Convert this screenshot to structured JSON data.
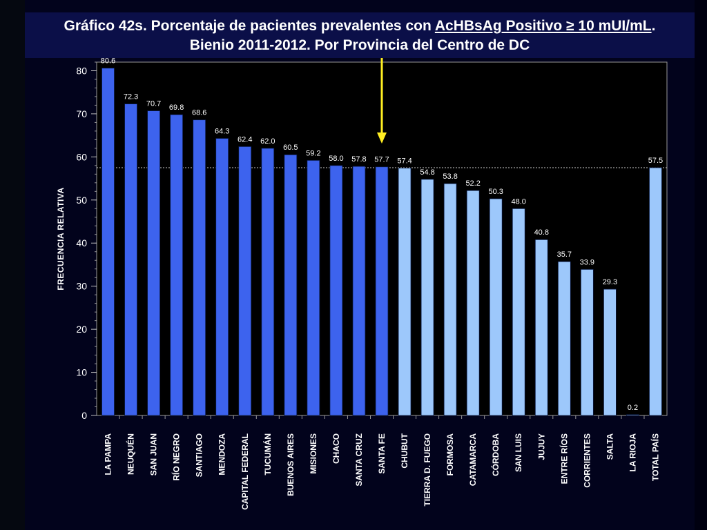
{
  "title": {
    "part1": "Gráfico 42s. Porcentaje de pacientes prevalentes  con ",
    "underlined": "AcHBsAg Positivo ≥ 10 mUI/mL",
    "part2": ".",
    "line2": "Bienio 2011-2012.  Por Provincia del Centro de DC"
  },
  "colors": {
    "highlight_bar": "#3d63ee",
    "normal_bar": "#9dc8fb",
    "arrow": "#ffee22",
    "reference_line": "#cccccc"
  },
  "chart_data": {
    "type": "bar",
    "ylabel": "FRECUENCIA RELATIVA",
    "ylim": [
      0,
      82
    ],
    "yticks": [
      0,
      10,
      20,
      30,
      40,
      50,
      60,
      70,
      80
    ],
    "reference_value": 57.5,
    "arrow_category": "SANTA FE",
    "grid": false,
    "categories": [
      "LA PAMPA",
      "NEUQUÉN",
      "SAN JUAN",
      "RÍO NEGRO",
      "SANTIAGO",
      "MENDOZA",
      "CAPITAL FEDERAL",
      "TUCUMÁN",
      "BUENOS AIRES",
      "MISIONES",
      "CHACO",
      "SANTA CRUZ",
      "SANTA FE",
      "CHUBUT",
      "TIERRA D. FUEGO",
      "FORMOSA",
      "CATAMARCA",
      "CÓRDOBA",
      "SAN LUIS",
      "JUJUY",
      "ENTRE RÍOS",
      "CORRIENTES",
      "SALTA",
      "LA RIOJA",
      "TOTAL PAÍS"
    ],
    "values": [
      80.6,
      72.3,
      70.7,
      69.8,
      68.6,
      64.3,
      62.4,
      62.0,
      60.5,
      59.2,
      58.0,
      57.8,
      57.7,
      57.4,
      54.8,
      53.8,
      52.2,
      50.3,
      48.0,
      40.8,
      35.7,
      33.9,
      29.3,
      0.2,
      57.5
    ],
    "value_labels": [
      "80.6",
      "72.3",
      "70.7",
      "69.8",
      "68.6",
      "64.3",
      "62.4",
      "62.0",
      "60.5",
      "59.2",
      "58.0",
      "57.8",
      "57.7",
      "57.4",
      "54.8",
      "53.8",
      "52.2",
      "50.3",
      "48.0",
      "40.8",
      "35.7",
      "33.9",
      "29.3",
      "0.2",
      "57.5"
    ],
    "highlighted": [
      true,
      true,
      true,
      true,
      true,
      true,
      true,
      true,
      true,
      true,
      true,
      true,
      true,
      false,
      false,
      false,
      false,
      false,
      false,
      false,
      false,
      false,
      false,
      false,
      false
    ]
  }
}
